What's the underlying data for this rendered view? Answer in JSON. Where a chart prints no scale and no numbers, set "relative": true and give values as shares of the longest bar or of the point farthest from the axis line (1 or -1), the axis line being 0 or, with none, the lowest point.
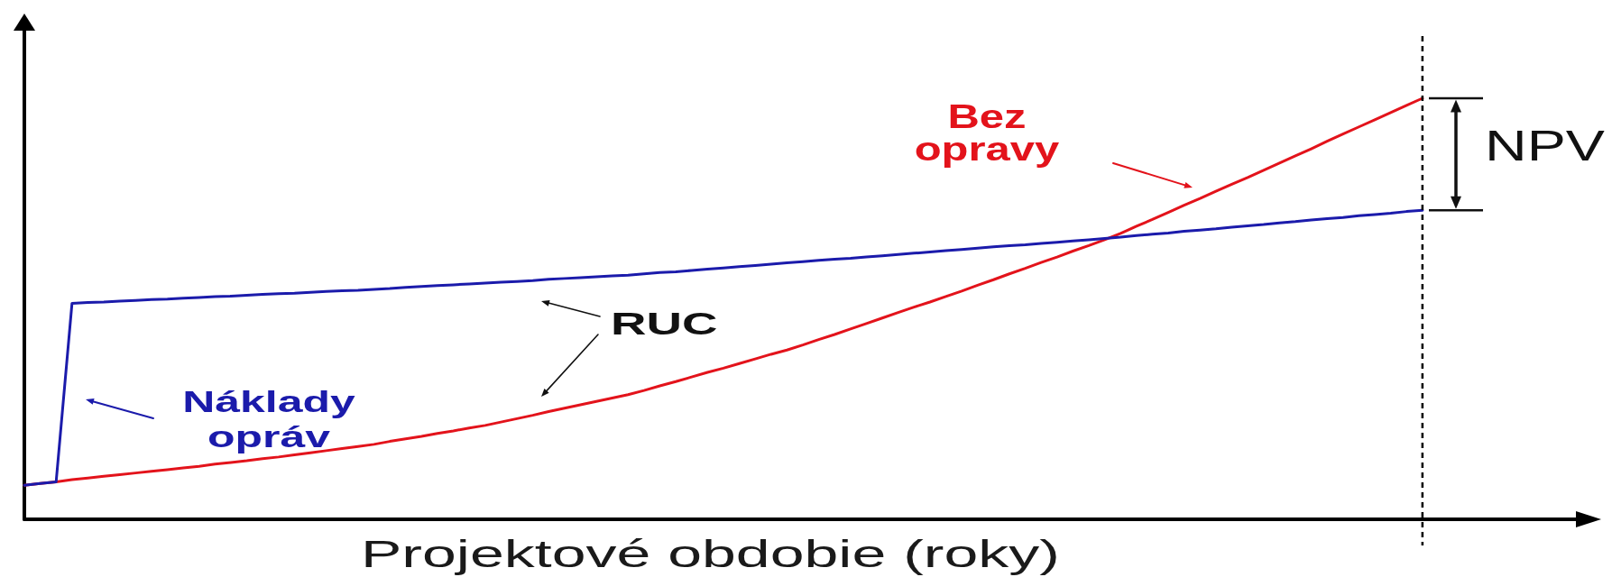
{
  "chart_data": {
    "type": "line",
    "xlabel": "Projektové obdobie (roky)",
    "relative": true,
    "marker": "none",
    "line_style": "solid",
    "categories": [
      null,
      null,
      null,
      null,
      null,
      null,
      null,
      null,
      null,
      null,
      null,
      null,
      null,
      null,
      null,
      null,
      null,
      null,
      null,
      null,
      null,
      null,
      null,
      null,
      null,
      null,
      null,
      null,
      null,
      null,
      null,
      null,
      null,
      null,
      null,
      null,
      null,
      null,
      null,
      null,
      null,
      null,
      null,
      null,
      null,
      null,
      null,
      null,
      null,
      null,
      null,
      null,
      null,
      null,
      null,
      null,
      null,
      null,
      null,
      null,
      null,
      null,
      null,
      null,
      null,
      null,
      null,
      null,
      null,
      null,
      null,
      null,
      null,
      null,
      null,
      null,
      null,
      null,
      null,
      null,
      null,
      null,
      null,
      null,
      null,
      null,
      null,
      null,
      null,
      null,
      null,
      null,
      null,
      null,
      null,
      null,
      null,
      null,
      null
    ],
    "series": [
      {
        "name": "Bez opravy",
        "color": "#e3131b",
        "values": [
          0.081,
          0.085,
          0.089,
          0.094,
          0.098,
          0.102,
          0.106,
          0.11,
          0.114,
          0.118,
          0.122,
          0.126,
          0.131,
          0.135,
          0.139,
          0.144,
          0.148,
          0.153,
          0.158,
          0.163,
          0.168,
          0.173,
          0.178,
          0.185,
          0.191,
          0.197,
          0.204,
          0.21,
          0.217,
          0.223,
          0.231,
          0.239,
          0.247,
          0.256,
          0.264,
          0.272,
          0.28,
          0.288,
          0.296,
          0.306,
          0.317,
          0.327,
          0.338,
          0.349,
          0.359,
          0.37,
          0.381,
          0.392,
          0.402,
          0.414,
          0.427,
          0.439,
          0.452,
          0.465,
          0.478,
          0.491,
          0.504,
          0.516,
          0.529,
          0.542,
          0.556,
          0.569,
          0.583,
          0.596,
          0.61,
          0.623,
          0.637,
          0.65,
          0.664,
          0.679,
          0.696,
          0.712,
          0.729,
          0.746,
          0.762,
          0.779,
          0.796,
          0.812,
          0.829,
          0.846,
          0.863,
          0.88,
          0.898,
          0.915,
          0.932,
          0.949,
          0.966,
          0.983,
          1,
          null,
          null,
          null,
          null,
          null,
          null,
          null,
          null,
          null,
          null
        ]
      },
      {
        "name": "Náklady opráv",
        "color": "#1b1bab",
        "values": [
          0.081,
          0.085,
          0.089,
          0.513,
          0.515,
          0.516,
          0.518,
          0.52,
          0.522,
          0.523,
          0.525,
          0.527,
          0.529,
          0.53,
          0.532,
          0.534,
          0.536,
          0.537,
          0.539,
          0.541,
          0.543,
          0.544,
          0.546,
          0.548,
          0.551,
          0.553,
          0.555,
          0.557,
          0.559,
          0.561,
          0.563,
          0.565,
          0.567,
          0.57,
          0.572,
          0.574,
          0.576,
          0.578,
          0.58,
          0.583,
          0.586,
          0.588,
          0.591,
          0.594,
          0.597,
          0.6,
          0.603,
          0.606,
          0.609,
          0.612,
          0.615,
          0.618,
          0.62,
          0.623,
          0.626,
          0.629,
          0.632,
          0.635,
          0.638,
          0.641,
          0.644,
          0.647,
          0.65,
          0.652,
          0.655,
          0.658,
          0.661,
          0.664,
          0.667,
          0.67,
          0.674,
          0.677,
          0.68,
          0.684,
          0.687,
          0.69,
          0.694,
          0.697,
          0.7,
          0.704,
          0.707,
          0.711,
          0.714,
          0.717,
          0.721,
          0.724,
          0.727,
          0.731,
          0.734,
          null,
          null,
          null,
          null,
          null,
          null,
          null,
          null,
          null,
          null
        ]
      }
    ],
    "annotations": [
      "RUC",
      "NPV"
    ]
  }
}
